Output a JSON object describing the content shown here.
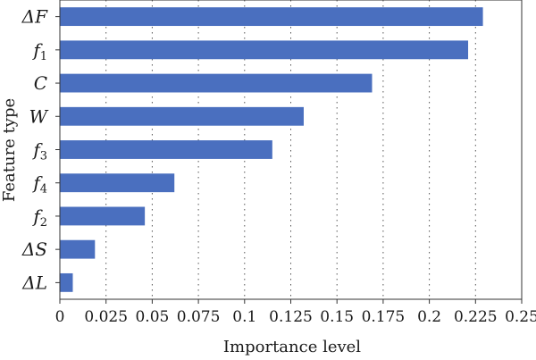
{
  "chart_data": {
    "type": "bar",
    "orientation": "horizontal",
    "categories": [
      {
        "base": "ΔF",
        "sub": ""
      },
      {
        "base": "f",
        "sub": "1"
      },
      {
        "base": "C",
        "sub": ""
      },
      {
        "base": "W",
        "sub": ""
      },
      {
        "base": "f",
        "sub": "3"
      },
      {
        "base": "f",
        "sub": "4"
      },
      {
        "base": "f",
        "sub": "2"
      },
      {
        "base": "ΔS",
        "sub": ""
      },
      {
        "base": "ΔL",
        "sub": ""
      }
    ],
    "values": [
      0.229,
      0.221,
      0.169,
      0.132,
      0.115,
      0.062,
      0.046,
      0.019,
      0.007
    ],
    "xlabel": "Importance level",
    "ylabel": "Feature type",
    "xlim": [
      0,
      0.25
    ],
    "xticks": [
      "0",
      "0.025",
      "0.05",
      "0.075",
      "0.1",
      "0.125",
      "0.15",
      "0.175",
      "0.2",
      "0.225",
      "0.25"
    ],
    "grid": "vertical dotted",
    "bar_color": "#4a6fbf"
  }
}
